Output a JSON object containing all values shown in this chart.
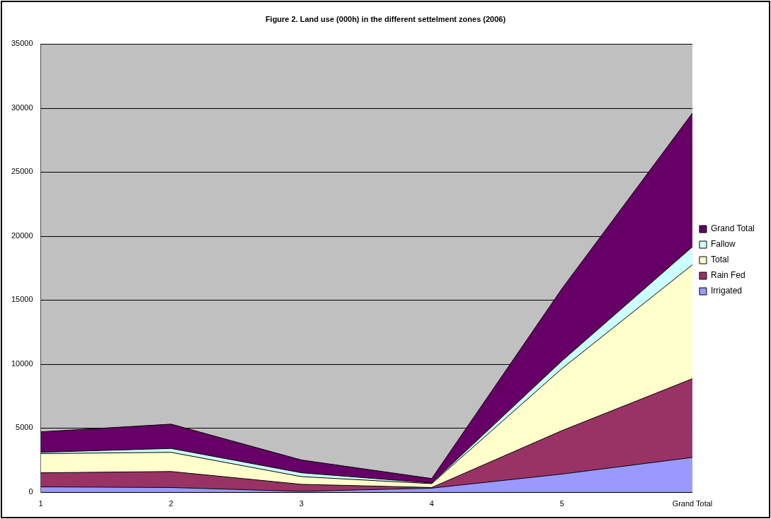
{
  "chart_data": {
    "type": "area",
    "stacked": true,
    "title": "Figure 2. Land use (000h) in the different settelment zones (2006)",
    "categories": [
      "1",
      "2",
      "3",
      "4",
      "5",
      "Grand Total"
    ],
    "series": [
      {
        "name": "Irrigated",
        "color": "#9999ff",
        "values": [
          400,
          350,
          50,
          300,
          1400,
          2700
        ]
      },
      {
        "name": "Rain Fed",
        "color": "#993366",
        "values": [
          1100,
          1250,
          550,
          50,
          3400,
          6150
        ]
      },
      {
        "name": "Total",
        "color": "#ffffcc",
        "values": [
          1500,
          1500,
          600,
          300,
          4850,
          8900
        ]
      },
      {
        "name": "Fallow",
        "color": "#ccffff",
        "values": [
          100,
          300,
          300,
          50,
          600,
          1400
        ]
      },
      {
        "name": "Grand Total",
        "color": "#660066",
        "values": [
          1600,
          1900,
          1000,
          350,
          5650,
          10450
        ]
      }
    ],
    "ylim": [
      0,
      35000
    ],
    "yticks": [
      0,
      5000,
      10000,
      15000,
      20000,
      25000,
      30000,
      35000
    ],
    "grid": "y",
    "legend": "right"
  }
}
